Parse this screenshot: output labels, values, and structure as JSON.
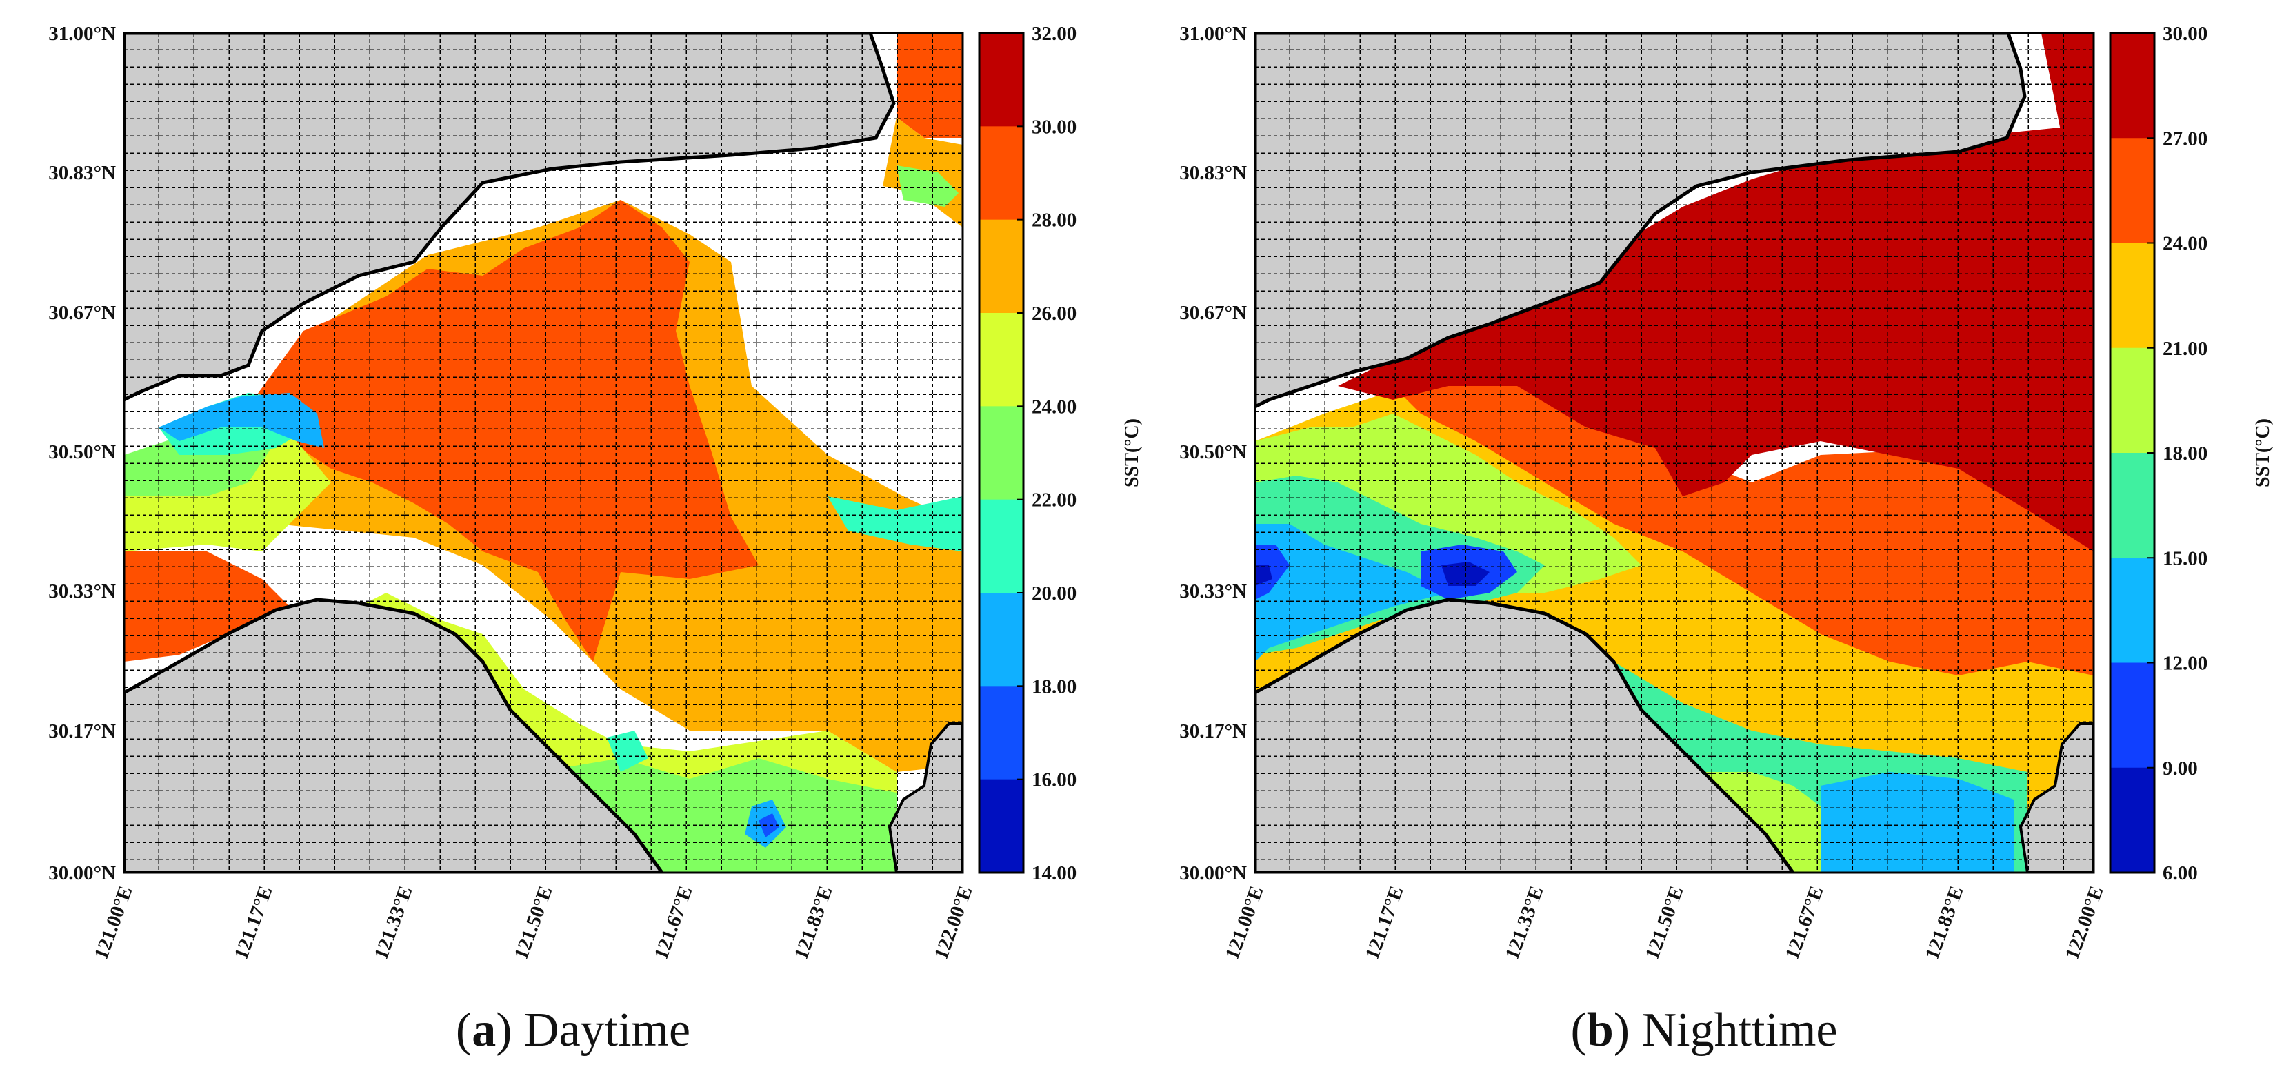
{
  "panels": [
    {
      "id": "a",
      "caption_letter": "a",
      "caption_text": "Daytime",
      "lat_ticks": [
        "31.00°N",
        "30.83°N",
        "30.67°N",
        "30.50°N",
        "30.33°N",
        "30.17°N",
        "30.00°N"
      ],
      "lon_ticks": [
        "121.00°E",
        "121.17°E",
        "121.33°E",
        "121.50°E",
        "121.67°E",
        "121.83°E",
        "122.00°E"
      ],
      "colorbar_ticks": [
        "32.00",
        "30.00",
        "28.00",
        "26.00",
        "24.00",
        "22.00",
        "20.00",
        "18.00",
        "16.00",
        "14.00"
      ],
      "colorbar_label": "SST(°C)",
      "colorbar_colors": [
        "#c00000",
        "#ff5000",
        "#ffb000",
        "#d8ff30",
        "#80ff60",
        "#30ffc0",
        "#10b0ff",
        "#1050ff",
        "#0010c0"
      ]
    },
    {
      "id": "b",
      "caption_letter": "b",
      "caption_text": "Nighttime",
      "lat_ticks": [
        "31.00°N",
        "30.83°N",
        "30.67°N",
        "30.50°N",
        "30.33°N",
        "30.17°N",
        "30.00°N"
      ],
      "lon_ticks": [
        "121.00°E",
        "121.17°E",
        "121.33°E",
        "121.50°E",
        "121.67°E",
        "121.83°E",
        "122.00°E"
      ],
      "colorbar_ticks": [
        "30.00",
        "27.00",
        "24.00",
        "21.00",
        "18.00",
        "15.00",
        "12.00",
        "9.00",
        "6.00"
      ],
      "colorbar_label": "SST(°C)",
      "colorbar_colors": [
        "#c00000",
        "#ff5000",
        "#ffc800",
        "#b8ff40",
        "#40f0a0",
        "#10b8ff",
        "#1040ff",
        "#0010c0"
      ]
    }
  ]
}
